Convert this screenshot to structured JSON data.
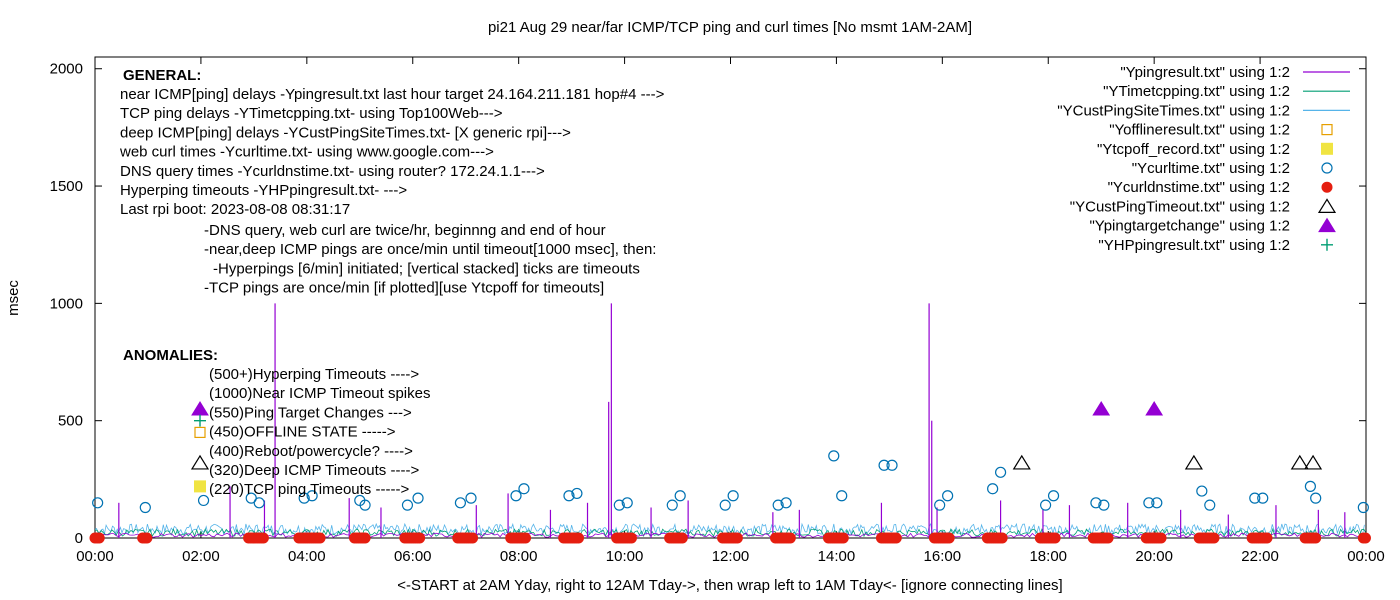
{
  "chart_data": {
    "type": "line",
    "title": "pi21 Aug 29  near/far ICMP/TCP ping and curl times [No msmt 1AM-2AM]",
    "xlabel": "<-START at 2AM Yday, right to 12AM Tday->, then wrap left to 1AM Tday<- [ignore connecting lines]",
    "ylabel": "msec",
    "xlim": [
      0,
      24
    ],
    "ylim": [
      0,
      2050
    ],
    "x_ticks": [
      {
        "v": 0,
        "label": "00:00"
      },
      {
        "v": 2,
        "label": "02:00"
      },
      {
        "v": 4,
        "label": "04:00"
      },
      {
        "v": 6,
        "label": "06:00"
      },
      {
        "v": 8,
        "label": "08:00"
      },
      {
        "v": 10,
        "label": "10:00"
      },
      {
        "v": 12,
        "label": "12:00"
      },
      {
        "v": 14,
        "label": "14:00"
      },
      {
        "v": 16,
        "label": "16:00"
      },
      {
        "v": 18,
        "label": "18:00"
      },
      {
        "v": 20,
        "label": "20:00"
      },
      {
        "v": 22,
        "label": "22:00"
      },
      {
        "v": 24,
        "label": "00:00"
      }
    ],
    "y_ticks": [
      {
        "v": 0,
        "label": "0"
      },
      {
        "v": 500,
        "label": "500"
      },
      {
        "v": 1000,
        "label": "1000"
      },
      {
        "v": 1500,
        "label": "1500"
      },
      {
        "v": 2000,
        "label": "2000"
      }
    ],
    "grid": false,
    "legend_position": "top-right",
    "annotations": {
      "general_heading": "GENERAL:",
      "general_lines": [
        "near ICMP[ping] delays -Ypingresult.txt last hour target 24.164.211.181 hop#4 --->",
        "TCP ping delays -YTimetcpping.txt- using Top100Web--->",
        "deep ICMP[ping] delays -YCustPingSiteTimes.txt- [X generic rpi]--->",
        "web curl times -Ycurltime.txt- using www.google.com--->",
        "DNS query times -Ycurldnstime.txt- using router? 172.24.1.1--->",
        "Hyperping timeouts -YHPpingresult.txt- --->",
        "Last rpi boot: 2023-08-08 08:31:17"
      ],
      "general_notes": [
        "-DNS query, web curl are twice/hr, beginnng and end of hour",
        "-near,deep ICMP pings are once/min until timeout[1000 msec], then:",
        "-Hyperpings [6/min] initiated; [vertical stacked] ticks are timeouts",
        "-TCP pings are once/min [if plotted][use Ytcpoff for timeouts]"
      ],
      "anomalies_heading": "ANOMALIES:",
      "anomaly_lines": [
        "(500+)Hyperping Timeouts ---->",
        "(1000)Near ICMP Timeout spikes",
        "(550)Ping Target Changes --->",
        "(450)OFFLINE STATE ----->",
        "(400)Reboot/powercycle? ---->",
        "(320)Deep ICMP Timeouts ---->",
        "(220)TCP ping Timeouts ----->"
      ]
    },
    "series": [
      {
        "name": "\"Ypingresult.txt\" using 1:2",
        "style": "line",
        "color": "#9400d3",
        "spikes": [
          [
            3.4,
            1000
          ],
          [
            9.75,
            1000
          ],
          [
            15.75,
            1000
          ],
          [
            9.7,
            580
          ],
          [
            15.8,
            500
          ],
          [
            0.45,
            150
          ],
          [
            2.55,
            220
          ],
          [
            3.2,
            160
          ],
          [
            4.8,
            170
          ],
          [
            5.4,
            130
          ],
          [
            7.2,
            140
          ],
          [
            7.8,
            190
          ],
          [
            8.6,
            120
          ],
          [
            9.3,
            150
          ],
          [
            10.5,
            130
          ],
          [
            11.2,
            160
          ],
          [
            12.8,
            110
          ],
          [
            13.3,
            120
          ],
          [
            14.85,
            150
          ],
          [
            15.9,
            130
          ],
          [
            17.1,
            160
          ],
          [
            17.9,
            120
          ],
          [
            18.4,
            140
          ],
          [
            19.5,
            150
          ],
          [
            20.5,
            120
          ],
          [
            21.4,
            100
          ],
          [
            22.3,
            140
          ],
          [
            23.1,
            120
          ],
          [
            23.6,
            110
          ]
        ]
      },
      {
        "name": "\"YTimetcpping.txt\" using 1:2",
        "style": "line",
        "color": "#009e73"
      },
      {
        "name": "\"YCustPingSiteTimes.txt\" using 1:2",
        "style": "line",
        "color": "#56b4e9"
      },
      {
        "name": "\"Yofflineresult.txt\" using 1:2",
        "style": "open-square",
        "color": "#e69f00",
        "points": []
      },
      {
        "name": "\"Ytcpoff_record.txt\" using 1:2",
        "style": "filled-square",
        "color": "#f0e442",
        "points": []
      },
      {
        "name": "\"Ycurltime.txt\" using 1:2",
        "style": "open-circle",
        "color": "#0072b2",
        "points": [
          [
            0.05,
            150
          ],
          [
            0.95,
            130
          ],
          [
            2.05,
            160
          ],
          [
            2.95,
            170
          ],
          [
            3.1,
            150
          ],
          [
            3.95,
            170
          ],
          [
            4.1,
            180
          ],
          [
            5.0,
            160
          ],
          [
            5.1,
            140
          ],
          [
            5.9,
            140
          ],
          [
            6.1,
            170
          ],
          [
            6.9,
            150
          ],
          [
            7.1,
            170
          ],
          [
            7.95,
            180
          ],
          [
            8.1,
            210
          ],
          [
            8.95,
            180
          ],
          [
            9.1,
            190
          ],
          [
            9.9,
            140
          ],
          [
            10.05,
            150
          ],
          [
            10.9,
            140
          ],
          [
            11.05,
            180
          ],
          [
            11.9,
            140
          ],
          [
            12.05,
            180
          ],
          [
            12.9,
            140
          ],
          [
            13.05,
            150
          ],
          [
            13.95,
            350
          ],
          [
            14.1,
            180
          ],
          [
            14.9,
            310
          ],
          [
            15.05,
            310
          ],
          [
            15.95,
            140
          ],
          [
            16.1,
            180
          ],
          [
            16.95,
            210
          ],
          [
            17.1,
            280
          ],
          [
            17.95,
            140
          ],
          [
            18.1,
            180
          ],
          [
            18.9,
            150
          ],
          [
            19.05,
            140
          ],
          [
            19.9,
            150
          ],
          [
            20.05,
            150
          ],
          [
            20.9,
            200
          ],
          [
            21.05,
            140
          ],
          [
            21.9,
            170
          ],
          [
            22.05,
            170
          ],
          [
            22.95,
            220
          ],
          [
            23.05,
            170
          ],
          [
            23.95,
            130
          ]
        ]
      },
      {
        "name": "\"Ycurldnstime.txt\" using 1:2",
        "style": "filled-circle",
        "color": "#e51e10",
        "x_ranges": [
          [
            0,
            0.1
          ],
          [
            0.9,
            1.0
          ],
          [
            2.9,
            3.2
          ],
          [
            3.85,
            4.25
          ],
          [
            4.9,
            5.1
          ],
          [
            5.85,
            6.15
          ],
          [
            6.85,
            7.15
          ],
          [
            7.85,
            8.15
          ],
          [
            8.85,
            9.15
          ],
          [
            9.85,
            10.15
          ],
          [
            10.85,
            11.1
          ],
          [
            11.85,
            12.15
          ],
          [
            12.85,
            13.15
          ],
          [
            13.85,
            14.15
          ],
          [
            14.85,
            15.15
          ],
          [
            15.85,
            16.15
          ],
          [
            16.85,
            17.15
          ],
          [
            17.85,
            18.15
          ],
          [
            18.85,
            19.15
          ],
          [
            19.85,
            20.15
          ],
          [
            20.85,
            21.15
          ],
          [
            21.85,
            22.15
          ],
          [
            22.85,
            23.05
          ],
          [
            23.95,
            24
          ]
        ]
      },
      {
        "name": "\"YCustPingTimeout.txt\" using 1:2",
        "style": "open-triangle",
        "color": "#000000",
        "points": [
          [
            17.5,
            320
          ],
          [
            20.75,
            320
          ],
          [
            22.75,
            320
          ],
          [
            23.0,
            320
          ]
        ]
      },
      {
        "name": "\"Ypingtargetchange\" using 1:2",
        "style": "filled-triangle",
        "color": "#9400d3",
        "points": [
          [
            19.0,
            550
          ],
          [
            20.0,
            550
          ]
        ]
      },
      {
        "name": "\"YHPpingresult.txt\" using 1:2",
        "style": "plus",
        "color": "#009e73",
        "points": []
      }
    ],
    "legend_markers": {
      "anomaly_triangle_filled": {
        "v": 550,
        "color": "#9400d3"
      },
      "anomaly_plus": {
        "v": 500,
        "color": "#009e73"
      },
      "anomaly_square_open": {
        "v": 450,
        "color": "#e69f00"
      },
      "anomaly_triangle_open": {
        "v": 320,
        "color": "#000000"
      },
      "anomaly_square_filled": {
        "v": 220,
        "color": "#f0e442"
      }
    }
  }
}
